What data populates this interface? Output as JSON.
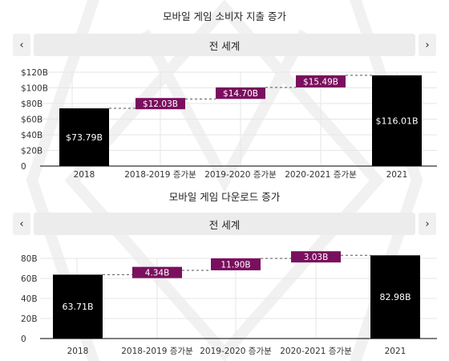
{
  "colors": {
    "total_bar": "#000000",
    "increment_bar": "#7a0f5e",
    "connector": "#555555",
    "nav_bg": "#f0f0f0",
    "region_bg": "#ececec"
  },
  "icons": {
    "prev": "‹",
    "next": "›"
  },
  "charts": [
    {
      "title": "모바일 게임 소비자 지출 증가",
      "region": "전 세계",
      "chart_data": {
        "type": "bar",
        "subtype": "waterfall",
        "categories": [
          "2018",
          "2018-2019 증가분",
          "2019-2020 증가분",
          "2020-2021 증가분",
          "2021"
        ],
        "values": [
          73.79,
          12.03,
          14.7,
          15.49,
          116.01
        ],
        "kinds": [
          "total",
          "increase",
          "increase",
          "increase",
          "total"
        ],
        "labels": [
          "$73.79B",
          "$12.03B",
          "$14.70B",
          "$15.49B",
          "$116.01B"
        ],
        "yticks": [
          "0",
          "$20B",
          "$40B",
          "$60B",
          "$80B",
          "$100B",
          "$120B"
        ],
        "ylim": [
          0,
          120
        ],
        "grid": true
      }
    },
    {
      "title": "모바일 게임 다운로드 증가",
      "region": "전 세계",
      "chart_data": {
        "type": "bar",
        "subtype": "waterfall",
        "categories": [
          "2018",
          "2018-2019 증가분",
          "2019-2020 증가분",
          "2020-2021 증가분",
          "2021"
        ],
        "values": [
          63.71,
          4.34,
          11.9,
          3.03,
          82.98
        ],
        "kinds": [
          "total",
          "increase",
          "increase",
          "increase",
          "total"
        ],
        "labels": [
          "63.71B",
          "4.34B",
          "11.90B",
          "3.03B",
          "82.98B"
        ],
        "yticks": [
          "0",
          "20B",
          "40B",
          "60B",
          "80B"
        ],
        "ylim": [
          0,
          80
        ],
        "grid": true
      }
    }
  ]
}
